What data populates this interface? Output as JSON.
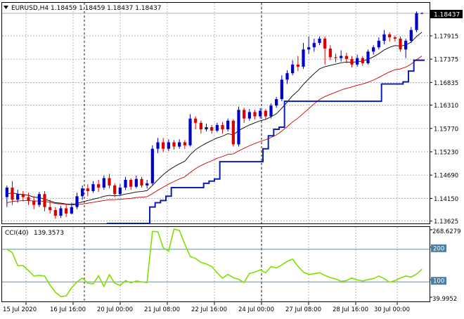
{
  "header": {
    "symbol": "EURUSD,H4",
    "ohlc": "1.18459 1.18459 1.18437 1.18437",
    "menu_icon": "triangle-down-icon"
  },
  "colors": {
    "bull": "#0000cc",
    "bear": "#dd0000",
    "ma_fast": "#000000",
    "ma_slow": "#cc0000",
    "trail": "#0a1fb0",
    "cci": "#7fe000",
    "grid": "#9a9a9a",
    "level_line": "#4a7fa0",
    "price_tag_bg": "#000000"
  },
  "chart_data": [
    {
      "type": "candlestick",
      "title": "",
      "xlabel": "",
      "ylabel": "",
      "y_ticks": [
        "1.18437",
        "1.17915",
        "1.17375",
        "1.16835",
        "1.16310",
        "1.15770",
        "1.15230",
        "1.14690",
        "1.14150",
        "1.13625"
      ],
      "x_ticks": [
        "15 Jul 2020",
        "16 Jul 16:00",
        "20 Jul 00:00",
        "21 Jul 08:00",
        "22 Jul 16:00",
        "24 Jul 00:00",
        "27 Jul 08:00",
        "28 Jul 16:00",
        "30 Jul 00:00"
      ],
      "ylim": [
        1.1357,
        1.1868
      ],
      "current_price": "1.18437",
      "candles": [
        [
          1.1418,
          1.144,
          1.1395,
          1.1445
        ],
        [
          1.144,
          1.1412,
          1.14,
          1.1455
        ],
        [
          1.1412,
          1.1425,
          1.1405,
          1.1435
        ],
        [
          1.1425,
          1.1418,
          1.1408,
          1.1432
        ],
        [
          1.1418,
          1.141,
          1.14,
          1.1428
        ],
        [
          1.141,
          1.14,
          1.139,
          1.142
        ],
        [
          1.14,
          1.1425,
          1.1395,
          1.143
        ],
        [
          1.1425,
          1.1395,
          1.1385,
          1.1432
        ],
        [
          1.1395,
          1.1388,
          1.138,
          1.1412
        ],
        [
          1.1388,
          1.1375,
          1.1368,
          1.1395
        ],
        [
          1.1375,
          1.1392,
          1.137,
          1.1398
        ],
        [
          1.1392,
          1.138,
          1.1372,
          1.14
        ],
        [
          1.138,
          1.1395,
          1.1378,
          1.1405
        ],
        [
          1.1395,
          1.142,
          1.139,
          1.1428
        ],
        [
          1.142,
          1.1438,
          1.1412,
          1.1445
        ],
        [
          1.1438,
          1.1432,
          1.142,
          1.1448
        ],
        [
          1.1432,
          1.1448,
          1.1428,
          1.1455
        ],
        [
          1.1448,
          1.144,
          1.143,
          1.1458
        ],
        [
          1.144,
          1.1462,
          1.1435,
          1.1468
        ],
        [
          1.1462,
          1.1445,
          1.1438,
          1.1472
        ],
        [
          1.1445,
          1.1425,
          1.1418,
          1.145
        ],
        [
          1.1425,
          1.144,
          1.142,
          1.1448
        ],
        [
          1.144,
          1.1458,
          1.1435,
          1.1465
        ],
        [
          1.1458,
          1.1442,
          1.1435,
          1.1462
        ],
        [
          1.1442,
          1.146,
          1.1438,
          1.1468
        ],
        [
          1.146,
          1.1445,
          1.144,
          1.1465
        ],
        [
          1.1445,
          1.145,
          1.1438,
          1.1458
        ],
        [
          1.145,
          1.153,
          1.1445,
          1.1538
        ],
        [
          1.153,
          1.1545,
          1.152,
          1.1555
        ],
        [
          1.1545,
          1.153,
          1.1522,
          1.1555
        ],
        [
          1.153,
          1.1545,
          1.1525,
          1.1552
        ],
        [
          1.1545,
          1.1535,
          1.1528,
          1.155
        ],
        [
          1.1535,
          1.1545,
          1.153,
          1.1552
        ],
        [
          1.1545,
          1.1538,
          1.153,
          1.155
        ],
        [
          1.1538,
          1.16,
          1.1535,
          1.161
        ],
        [
          1.16,
          1.159,
          1.1575,
          1.1605
        ],
        [
          1.159,
          1.1575,
          1.1565,
          1.1595
        ],
        [
          1.1575,
          1.158,
          1.157,
          1.1588
        ],
        [
          1.158,
          1.1572,
          1.1565,
          1.1585
        ],
        [
          1.1572,
          1.1585,
          1.1568,
          1.159
        ],
        [
          1.1585,
          1.1575,
          1.1565,
          1.1592
        ],
        [
          1.1575,
          1.1595,
          1.157,
          1.16
        ],
        [
          1.1595,
          1.154,
          1.1535,
          1.1598
        ],
        [
          1.154,
          1.162,
          1.1535,
          1.1628
        ],
        [
          1.162,
          1.16,
          1.159,
          1.1625
        ],
        [
          1.16,
          1.1615,
          1.1595,
          1.1622
        ],
        [
          1.1615,
          1.1605,
          1.1598,
          1.162
        ],
        [
          1.1605,
          1.1618,
          1.16,
          1.1624
        ],
        [
          1.1618,
          1.1605,
          1.1598,
          1.1622
        ],
        [
          1.1605,
          1.163,
          1.16,
          1.1635
        ],
        [
          1.163,
          1.1645,
          1.1625,
          1.165
        ],
        [
          1.1645,
          1.169,
          1.164,
          1.17
        ],
        [
          1.169,
          1.1705,
          1.168,
          1.1712
        ],
        [
          1.1705,
          1.1725,
          1.17,
          1.1735
        ],
        [
          1.1725,
          1.172,
          1.171,
          1.1745
        ],
        [
          1.172,
          1.176,
          1.1715,
          1.1775
        ],
        [
          1.176,
          1.1765,
          1.175,
          1.179
        ],
        [
          1.1765,
          1.1775,
          1.1755,
          1.1785
        ],
        [
          1.1775,
          1.1785,
          1.177,
          1.179
        ],
        [
          1.1785,
          1.1762,
          1.1725,
          1.179
        ],
        [
          1.1762,
          1.1742,
          1.1735,
          1.177
        ],
        [
          1.1742,
          1.174,
          1.173,
          1.175
        ],
        [
          1.174,
          1.1745,
          1.1732,
          1.1758
        ],
        [
          1.1745,
          1.1738,
          1.1728,
          1.1752
        ],
        [
          1.1738,
          1.1725,
          1.1718,
          1.1745
        ],
        [
          1.1725,
          1.174,
          1.172,
          1.1748
        ],
        [
          1.174,
          1.1728,
          1.1722,
          1.1745
        ],
        [
          1.1728,
          1.1755,
          1.1725,
          1.176
        ],
        [
          1.1755,
          1.1765,
          1.1748,
          1.177
        ],
        [
          1.1765,
          1.178,
          1.176,
          1.1788
        ],
        [
          1.178,
          1.1795,
          1.1772,
          1.1805
        ],
        [
          1.1795,
          1.1788,
          1.1778,
          1.18
        ],
        [
          1.1788,
          1.1785,
          1.1778,
          1.1792
        ],
        [
          1.1785,
          1.176,
          1.1755,
          1.179
        ],
        [
          1.176,
          1.178,
          1.174,
          1.1785
        ],
        [
          1.178,
          1.1805,
          1.1775,
          1.1812
        ],
        [
          1.1805,
          1.1844,
          1.18,
          1.1848
        ],
        [
          1.1844,
          1.1844,
          1.1843,
          1.1846
        ]
      ],
      "series": [
        {
          "values": [
            1.1425,
            1.1428,
            1.1425,
            1.1424,
            1.1422,
            1.1418,
            1.1417,
            1.1413,
            1.1409,
            1.1405,
            1.1404,
            1.1402,
            1.1401,
            1.1403,
            1.1407,
            1.141,
            1.1413,
            1.1416,
            1.142,
            1.1422,
            1.1421,
            1.1422,
            1.1425,
            1.1427,
            1.143,
            1.1431,
            1.1433,
            1.1445,
            1.1458,
            1.147,
            1.148,
            1.1488,
            1.1495,
            1.1501,
            1.1516,
            1.1528,
            1.1536,
            1.1543,
            1.1549,
            1.1555,
            1.1559,
            1.1565,
            1.1562,
            1.1572,
            1.1579,
            1.1585,
            1.159,
            1.1595,
            1.1598,
            1.1604,
            1.1611,
            1.1624,
            1.1638,
            1.1653,
            1.1664,
            1.1679,
            1.1692,
            1.1704,
            1.1715,
            1.172,
            1.1723,
            1.1726,
            1.1729,
            1.1731,
            1.173,
            1.1732,
            1.1733,
            1.1737,
            1.1743,
            1.175,
            1.1759,
            1.1765,
            1.1769,
            1.1768,
            1.177,
            1.1777,
            1.179,
            1.18
          ]
        },
        {
          "values": [
            1.1405,
            1.1408,
            1.1409,
            1.141,
            1.141,
            1.1409,
            1.1409,
            1.1408,
            1.1406,
            1.1403,
            1.1402,
            1.1401,
            1.14,
            1.14,
            1.1402,
            1.1404,
            1.1406,
            1.1408,
            1.141,
            1.1412,
            1.1412,
            1.1413,
            1.1414,
            1.1415,
            1.1417,
            1.1418,
            1.1419,
            1.1426,
            1.1434,
            1.1441,
            1.1448,
            1.1454,
            1.146,
            1.1465,
            1.1475,
            1.1484,
            1.1491,
            1.1497,
            1.1502,
            1.1508,
            1.1512,
            1.1517,
            1.1518,
            1.1525,
            1.1531,
            1.1537,
            1.1542,
            1.1547,
            1.1551,
            1.1556,
            1.1562,
            1.1571,
            1.1581,
            1.1592,
            1.1601,
            1.1612,
            1.1623,
            1.1634,
            1.1644,
            1.1651,
            1.1656,
            1.1661,
            1.1666,
            1.167,
            1.1673,
            1.1677,
            1.168,
            1.1684,
            1.1689,
            1.1695,
            1.1702,
            1.1708,
            1.1713,
            1.1715,
            1.1719,
            1.1726,
            1.1736,
            1.1745
          ]
        },
        {
          "values": [
            null,
            null,
            null,
            null,
            null,
            null,
            null,
            null,
            null,
            null,
            null,
            null,
            null,
            null,
            null,
            null,
            null,
            null,
            null,
            1.1357,
            1.1357,
            1.1357,
            1.1357,
            1.1357,
            1.1357,
            1.1357,
            1.1357,
            1.1395,
            1.1405,
            1.141,
            1.142,
            1.144,
            1.144,
            1.144,
            1.144,
            1.144,
            1.144,
            1.145,
            1.1455,
            1.146,
            1.15,
            1.15,
            1.15,
            1.15,
            1.15,
            1.15,
            1.15,
            1.15,
            1.153,
            1.156,
            1.1575,
            1.158,
            1.164,
            1.164,
            1.164,
            1.164,
            1.164,
            1.164,
            1.164,
            1.164,
            1.164,
            1.164,
            1.164,
            1.164,
            1.164,
            1.164,
            1.164,
            1.164,
            1.164,
            1.164,
            1.168,
            1.168,
            1.168,
            1.168,
            1.1685,
            1.171,
            1.1735,
            1.1735
          ]
        }
      ]
    },
    {
      "type": "line",
      "title": "CCI(40) 139.3573",
      "name_label": "CCI(40)",
      "value_label": "139.3573",
      "y_ticks": [
        "268.6279",
        "200",
        "100",
        "39.9952"
      ],
      "levels": [
        200,
        100
      ],
      "ylim": [
        39.9952,
        268.6279
      ],
      "series": [
        {
          "values": [
            200,
            190,
            150,
            150,
            135,
            118,
            120,
            118,
            90,
            68,
            55,
            57,
            82,
            100,
            112,
            96,
            94,
            119,
            86,
            122,
            96,
            89,
            104,
            97,
            103,
            100,
            98,
            255,
            254,
            205,
            194,
            262,
            258,
            216,
            178,
            172,
            160,
            155,
            147,
            128,
            111,
            123,
            113,
            108,
            98,
            126,
            130,
            137,
            128,
            147,
            143,
            152,
            163,
            170,
            148,
            130,
            123,
            125,
            128,
            120,
            113,
            109,
            102,
            104,
            112,
            106,
            103,
            107,
            110,
            118,
            110,
            99,
            104,
            112,
            118,
            115,
            124,
            139
          ]
        }
      ]
    }
  ]
}
